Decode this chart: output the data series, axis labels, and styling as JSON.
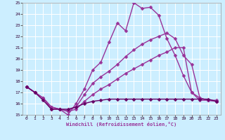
{
  "background_color": "#cceeff",
  "grid_color": "#ffffff",
  "xlabel": "Windchill (Refroidissement éolien,°C)",
  "xlim": [
    -0.5,
    23.5
  ],
  "ylim": [
    15,
    25
  ],
  "yticks": [
    15,
    16,
    17,
    18,
    19,
    20,
    21,
    22,
    23,
    24,
    25
  ],
  "xticks": [
    0,
    1,
    2,
    3,
    4,
    5,
    6,
    7,
    8,
    9,
    10,
    11,
    12,
    13,
    14,
    15,
    16,
    17,
    18,
    19,
    20,
    21,
    22,
    23
  ],
  "series": [
    {
      "x": [
        0,
        1,
        2,
        3,
        4,
        5,
        6,
        7,
        8,
        9,
        10,
        11,
        12,
        13,
        14,
        15,
        16,
        17,
        18,
        19,
        20,
        21,
        22,
        23
      ],
      "y": [
        17.5,
        17.0,
        16.5,
        15.5,
        15.5,
        15.0,
        16.0,
        17.3,
        19.0,
        19.7,
        21.5,
        23.2,
        22.5,
        25.0,
        24.5,
        24.6,
        23.9,
        21.8,
        20.3,
        18.5,
        17.0,
        16.3,
        16.3,
        16.2
      ],
      "color": "#993399",
      "linewidth": 1.0,
      "marker": "D",
      "markersize": 2.5
    },
    {
      "x": [
        0,
        1,
        2,
        3,
        4,
        5,
        6,
        7,
        8,
        9,
        10,
        11,
        12,
        13,
        14,
        15,
        16,
        17,
        18,
        19,
        20,
        21,
        22,
        23
      ],
      "y": [
        17.5,
        17.0,
        16.5,
        15.7,
        15.5,
        15.4,
        15.7,
        16.8,
        17.8,
        18.4,
        18.9,
        19.5,
        20.2,
        20.8,
        21.3,
        21.7,
        22.0,
        22.3,
        21.8,
        20.3,
        19.5,
        16.5,
        16.3,
        16.2
      ],
      "color": "#993399",
      "linewidth": 1.0,
      "marker": "D",
      "markersize": 2.5
    },
    {
      "x": [
        0,
        1,
        2,
        3,
        4,
        5,
        6,
        7,
        8,
        9,
        10,
        11,
        12,
        13,
        14,
        15,
        16,
        17,
        18,
        19,
        20,
        21,
        22,
        23
      ],
      "y": [
        17.5,
        17.0,
        16.5,
        15.7,
        15.5,
        15.3,
        15.5,
        16.2,
        16.8,
        17.3,
        17.7,
        18.2,
        18.7,
        19.1,
        19.5,
        19.9,
        20.3,
        20.6,
        21.0,
        21.0,
        17.0,
        16.5,
        16.3,
        16.3
      ],
      "color": "#993399",
      "linewidth": 1.0,
      "marker": "D",
      "markersize": 2.5
    },
    {
      "x": [
        0,
        1,
        2,
        3,
        4,
        5,
        6,
        7,
        8,
        9,
        10,
        11,
        12,
        13,
        14,
        15,
        16,
        17,
        18,
        19,
        20,
        21,
        22,
        23
      ],
      "y": [
        17.5,
        17.0,
        16.3,
        15.5,
        15.5,
        15.5,
        15.7,
        16.0,
        16.2,
        16.3,
        16.4,
        16.4,
        16.4,
        16.4,
        16.4,
        16.4,
        16.4,
        16.4,
        16.4,
        16.4,
        16.4,
        16.4,
        16.4,
        16.2
      ],
      "color": "#660066",
      "linewidth": 1.0,
      "marker": "D",
      "markersize": 2.5
    }
  ]
}
